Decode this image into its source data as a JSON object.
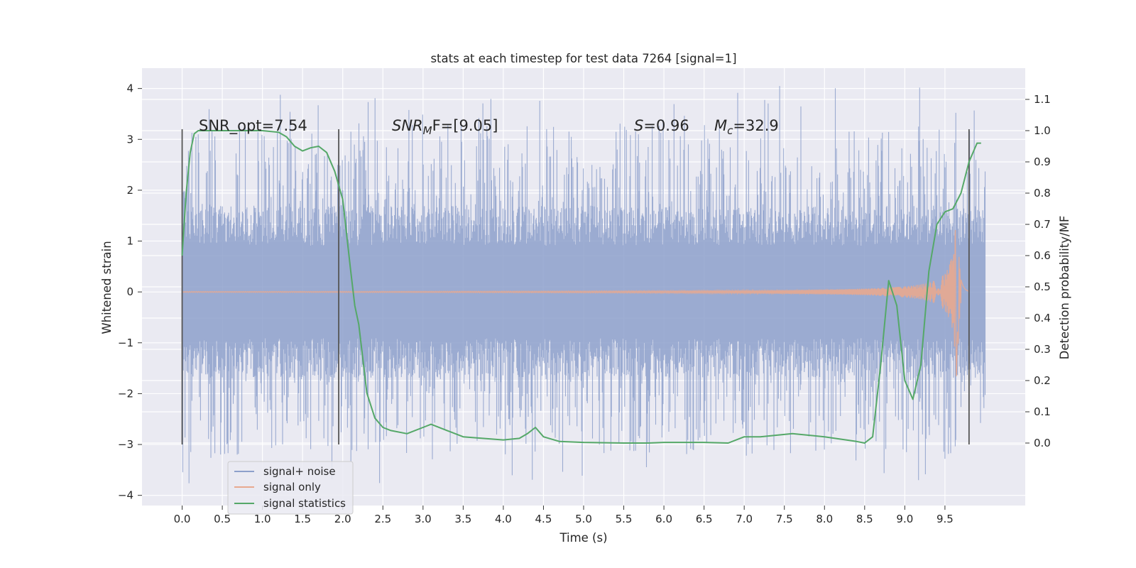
{
  "chart_data": {
    "type": "line",
    "title": "stats at each timestep for test data 7264 [signal=1]",
    "xlabel": "Time (s)",
    "ylabel": "Whitened strain",
    "y2label": "Detection probability/MF",
    "xlim": [
      -0.5,
      10.5
    ],
    "ylim": [
      -4.2,
      4.4
    ],
    "y2lim": [
      -0.2,
      1.2
    ],
    "x_ticks": [
      "0.0",
      "0.5",
      "1.0",
      "1.5",
      "2.0",
      "2.5",
      "3.0",
      "3.5",
      "4.0",
      "4.5",
      "5.0",
      "5.5",
      "6.0",
      "6.5",
      "7.0",
      "7.5",
      "8.0",
      "8.5",
      "9.0",
      "9.5"
    ],
    "x_tick_values": [
      0,
      0.5,
      1,
      1.5,
      2,
      2.5,
      3,
      3.5,
      4,
      4.5,
      5,
      5.5,
      6,
      6.5,
      7,
      7.5,
      8,
      8.5,
      9,
      9.5
    ],
    "y_ticks": [
      "−4",
      "−3",
      "−2",
      "−1",
      "0",
      "1",
      "2",
      "3",
      "4"
    ],
    "y_tick_values": [
      -4,
      -3,
      -2,
      -1,
      0,
      1,
      2,
      3,
      4
    ],
    "y2_ticks": [
      "0.0",
      "0.1",
      "0.2",
      "0.3",
      "0.4",
      "0.5",
      "0.6",
      "0.7",
      "0.8",
      "0.9",
      "1.0",
      "1.1"
    ],
    "y2_tick_values": [
      0,
      0.1,
      0.2,
      0.3,
      0.4,
      0.5,
      0.6,
      0.7,
      0.8,
      0.9,
      1.0,
      1.1
    ],
    "grid": true,
    "legend_position": "bottom-left",
    "annotations": {
      "snr_opt": "SNR_opt=7.54",
      "snr_mf_name": "SNR",
      "snr_mf_sub": "M",
      "snr_mf_rest": "F=[9.05]",
      "s_name": "S",
      "s_value": "=0.96",
      "mc_name": "M",
      "mc_sub": "c",
      "mc_value": "=32.9"
    },
    "vertical_markers": [
      {
        "x": 0.0,
        "y_range": [
          -3.0,
          3.2
        ]
      },
      {
        "x": 1.95,
        "y_range": [
          -3.0,
          3.2
        ]
      },
      {
        "x": 9.8,
        "y_range": [
          -3.0,
          3.2
        ]
      }
    ],
    "series": [
      {
        "name": "signal+ noise",
        "color": "#8da0cb",
        "axis": "left",
        "x_range": [
          0,
          10
        ],
        "typical_amplitude": 1.3,
        "max_value": 4.05,
        "min_value": -3.8
      },
      {
        "name": "signal only",
        "color": "#e8a98f",
        "axis": "left",
        "x_range": [
          0,
          9.8
        ],
        "amplitude_at_start": 0.01,
        "amplitude_at_peak": 1.7,
        "peak_x": 9.65
      },
      {
        "name": "signal statistics",
        "color": "#55a868",
        "axis": "right",
        "x": [
          0,
          0.05,
          0.1,
          0.15,
          0.2,
          0.3,
          0.5,
          1.0,
          1.2,
          1.3,
          1.4,
          1.5,
          1.6,
          1.7,
          1.8,
          1.9,
          2.0,
          2.1,
          2.15,
          2.2,
          2.3,
          2.4,
          2.5,
          2.6,
          2.8,
          3.0,
          3.1,
          3.3,
          3.5,
          4.0,
          4.2,
          4.3,
          4.4,
          4.5,
          4.7,
          5.0,
          5.5,
          5.8,
          6.0,
          6.5,
          6.8,
          7.0,
          7.2,
          7.6,
          8.0,
          8.4,
          8.5,
          8.6,
          8.7,
          8.8,
          8.9,
          9.0,
          9.1,
          9.2,
          9.3,
          9.4,
          9.5,
          9.6,
          9.7,
          9.8,
          9.9,
          9.95
        ],
        "values": [
          0.6,
          0.8,
          0.93,
          0.99,
          1.0,
          1.0,
          1.0,
          1.0,
          0.995,
          0.98,
          0.95,
          0.935,
          0.945,
          0.95,
          0.93,
          0.87,
          0.78,
          0.55,
          0.44,
          0.38,
          0.16,
          0.08,
          0.05,
          0.04,
          0.03,
          0.05,
          0.06,
          0.04,
          0.02,
          0.01,
          0.015,
          0.03,
          0.05,
          0.02,
          0.005,
          0.002,
          0.0,
          0.0,
          0.002,
          0.002,
          0.0,
          0.02,
          0.02,
          0.03,
          0.02,
          0.005,
          0.0,
          0.02,
          0.25,
          0.52,
          0.44,
          0.2,
          0.14,
          0.25,
          0.55,
          0.7,
          0.74,
          0.75,
          0.8,
          0.9,
          0.96,
          0.96
        ]
      }
    ]
  }
}
